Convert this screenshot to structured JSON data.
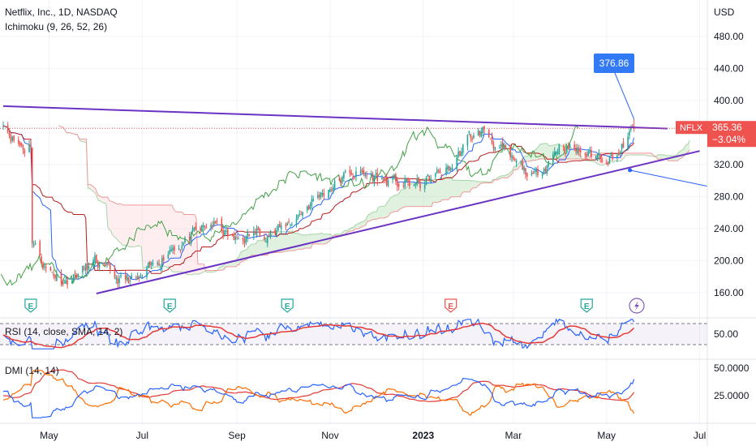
{
  "header": {
    "title": "Netflix, Inc., 1D, NASDAQ",
    "indicator": "Ichimoku (9, 26, 52, 26)",
    "currency": "USD"
  },
  "rsi_pane": {
    "label": "RSI (14, close, SMA, 14, 2)",
    "value_label": "50.00"
  },
  "dmi_pane": {
    "label": "DMI (14, 14)",
    "ticks": [
      "50.0000",
      "25.0000"
    ]
  },
  "price_tag": {
    "symbol": "NFLX",
    "price": "365.36",
    "change": "−3.04%"
  },
  "callout": {
    "value": "376.86"
  },
  "earnings_markers": [
    "E",
    "E",
    "E",
    "E",
    "E"
  ],
  "alert_marker": "lightning-icon",
  "colors": {
    "bull": "#26a69a",
    "bear": "#ef5350",
    "trendline": "#6b33c4",
    "tenkan": "#2962ff",
    "kijun": "#b71c1c",
    "lagging": "#43a047",
    "cloud_bull": "#a5d6a7",
    "cloud_bear": "#ffcdd2",
    "rsi": "#2962ff",
    "rsi_ma": "#e53935",
    "dmi_plus": "#2962ff",
    "dmi_minus": "#ff6d00",
    "adx": "#e53935",
    "callout": "#2962ff"
  },
  "chart_data": {
    "type": "candlestick",
    "title": "Netflix, Inc., 1D, NASDAQ",
    "y_axis": {
      "ticks": [
        "480.00",
        "440.00",
        "400.00",
        "360.00",
        "320.00",
        "280.00",
        "240.00",
        "200.00",
        "160.00"
      ],
      "ylim": [
        143,
        507
      ]
    },
    "x_axis": {
      "ticks": [
        "May",
        "Jul",
        "Sep",
        "Nov",
        "2023",
        "Mar",
        "May",
        "Jul"
      ]
    },
    "months": [
      "2022-04",
      "2022-05",
      "2022-06",
      "2022-07",
      "2022-08",
      "2022-09",
      "2022-10",
      "2022-11",
      "2022-12",
      "2023-01",
      "2023-02",
      "2023-03",
      "2023-04",
      "2023-05",
      "2023-06",
      "2023-07"
    ],
    "close_path": [
      [
        "2022-04-01",
        375
      ],
      [
        "2022-04-08",
        352
      ],
      [
        "2022-04-15",
        340
      ],
      [
        "2022-04-19",
        348
      ],
      [
        "2022-04-20",
        226
      ],
      [
        "2022-04-29",
        190
      ],
      [
        "2022-05-12",
        175
      ],
      [
        "2022-05-31",
        197
      ],
      [
        "2022-06-16",
        175
      ],
      [
        "2022-06-30",
        175
      ],
      [
        "2022-07-20",
        218
      ],
      [
        "2022-07-29",
        224
      ],
      [
        "2022-08-16",
        246
      ],
      [
        "2022-08-31",
        224
      ],
      [
        "2022-09-15",
        236
      ],
      [
        "2022-09-30",
        238
      ],
      [
        "2022-10-19",
        272
      ],
      [
        "2022-10-31",
        291
      ],
      [
        "2022-11-15",
        310
      ],
      [
        "2022-11-30",
        305
      ],
      [
        "2022-12-15",
        296
      ],
      [
        "2022-12-30",
        295
      ],
      [
        "2023-01-19",
        316
      ],
      [
        "2023-01-31",
        353
      ],
      [
        "2023-02-10",
        362
      ],
      [
        "2023-02-28",
        323
      ],
      [
        "2023-03-15",
        303
      ],
      [
        "2023-03-31",
        345
      ],
      [
        "2023-04-18",
        333
      ],
      [
        "2023-04-30",
        330
      ],
      [
        "2023-05-10",
        337
      ],
      [
        "2023-05-19",
        365
      ]
    ],
    "price_tags": {
      "last": 365.36,
      "change_pct": -3.04,
      "callout": 376.86
    },
    "trendlines": [
      {
        "from": [
          "2022-04-01",
          393
        ],
        "to": [
          "2023-06-10",
          365
        ]
      },
      {
        "from": [
          "2022-06-01",
          159
        ],
        "to": [
          "2023-07-01",
          337
        ]
      }
    ],
    "rsi": {
      "ticks": [
        "50.00"
      ],
      "band": [
        30,
        70
      ]
    },
    "dmi": {
      "ticks": [
        "50.0000",
        "25.0000"
      ],
      "latest_plus_di": 40
    }
  }
}
